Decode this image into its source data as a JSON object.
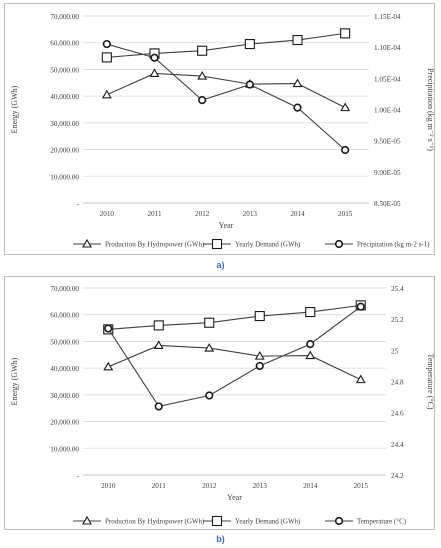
{
  "chart_data": [
    {
      "panel_label": "a)",
      "type": "line",
      "x": [
        "2010",
        "2011",
        "2012",
        "2013",
        "2014",
        "2015"
      ],
      "xlabel": "Year",
      "ylabel": "Energy (GWh)",
      "y2label": "Precipitation (kg m⁻² s⁻¹)",
      "yticks": [
        "-",
        "10,000.00",
        "20,000.00",
        "30,000.00",
        "40,000.00",
        "50,000.00",
        "60,000.00",
        "70,000.00"
      ],
      "ylim": [
        0,
        70000
      ],
      "y2ticks": [
        "8.50E-05",
        "9.00E-05",
        "9.50E-05",
        "1.00E-04",
        "1.05E-04",
        "1.10E-04",
        "1.15E-04"
      ],
      "y2lim": [
        8.5e-05,
        0.000115
      ],
      "grid": true,
      "legend_position": "bottom",
      "series": [
        {
          "name": "Production By Hydropower (GWh)",
          "marker": "triangle",
          "axis": "left",
          "values": [
            40500,
            48500,
            47500,
            44500,
            44700,
            35700
          ]
        },
        {
          "name": "Yearly Demand (GWh)",
          "marker": "square",
          "axis": "left",
          "values": [
            54500,
            56000,
            57000,
            59500,
            61000,
            63500
          ]
        },
        {
          "name": "Precipitation (kg m-2 s-1)",
          "marker": "circle",
          "axis": "right",
          "values": [
            0.0001105,
            0.0001083,
            0.0001015,
            0.000104,
            0.0001003,
            9.35e-05
          ]
        }
      ]
    },
    {
      "panel_label": "b)",
      "type": "line",
      "x": [
        "2010",
        "2011",
        "2012",
        "2013",
        "2014",
        "2015"
      ],
      "xlabel": "Year",
      "ylabel": "Energy (GWh)",
      "y2label": "Temperature (°C)",
      "yticks": [
        "-",
        "10,000.00",
        "20,000.00",
        "30,000.00",
        "40,000.00",
        "50,000.00",
        "60,000.00",
        "70,000.00"
      ],
      "ylim": [
        0,
        70000
      ],
      "y2ticks": [
        "24.2",
        "24.4",
        "24.6",
        "24.8",
        "25",
        "25.2",
        "25.4"
      ],
      "y2lim": [
        24.2,
        25.4
      ],
      "grid": true,
      "legend_position": "bottom",
      "series": [
        {
          "name": "Production By Hydropower (GWh)",
          "marker": "triangle",
          "axis": "left",
          "values": [
            40500,
            48500,
            47500,
            44500,
            44700,
            35700
          ]
        },
        {
          "name": "Yearly Demand (GWh)",
          "marker": "square",
          "axis": "left",
          "values": [
            54500,
            56000,
            57000,
            59500,
            61000,
            63500
          ]
        },
        {
          "name": "Temperature (°C)",
          "marker": "circle",
          "axis": "right",
          "values": [
            25.14,
            24.64,
            24.71,
            24.9,
            25.04,
            25.28
          ]
        }
      ]
    }
  ]
}
